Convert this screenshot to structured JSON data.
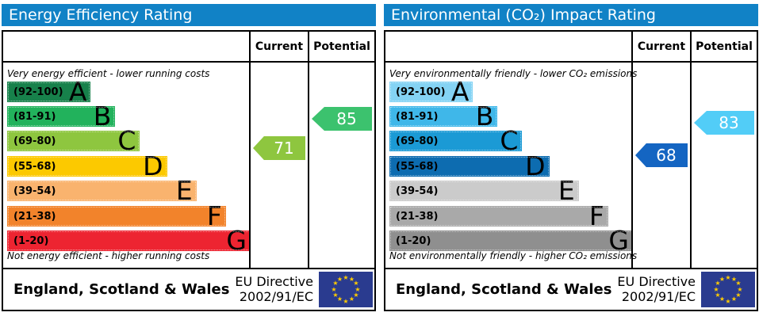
{
  "colors": {
    "header_bar": "#1182c6",
    "border": "#000000",
    "eu_flag_bg": "#2a3b8f",
    "eu_star": "#ffcc00"
  },
  "panels": [
    {
      "title": "Energy Efficiency Rating",
      "columns": {
        "current": "Current",
        "potential": "Potential"
      },
      "top_note": "Very energy efficient - lower running costs",
      "bottom_note": "Not energy efficient - higher running costs",
      "bands": [
        {
          "letter": "A",
          "range": "(92-100)",
          "color": "#17814b"
        },
        {
          "letter": "B",
          "range": "(81-91)",
          "color": "#22b25c"
        },
        {
          "letter": "C",
          "range": "(69-80)",
          "color": "#8ec63f"
        },
        {
          "letter": "D",
          "range": "(55-68)",
          "color": "#fcc900"
        },
        {
          "letter": "E",
          "range": "(39-54)",
          "color": "#f9b36e"
        },
        {
          "letter": "F",
          "range": "(21-38)",
          "color": "#f2832b"
        },
        {
          "letter": "G",
          "range": "(1-20)",
          "color": "#ed2431"
        }
      ],
      "current": {
        "value": "71",
        "band": "C",
        "color": "#8ec63f"
      },
      "potential": {
        "value": "85",
        "band": "B",
        "color": "#3cc26e"
      },
      "footer": {
        "region": "England, Scotland & Wales",
        "directive_line1": "EU Directive",
        "directive_line2": "2002/91/EC"
      }
    },
    {
      "title": "Environmental (CO₂) Impact Rating",
      "columns": {
        "current": "Current",
        "potential": "Potential"
      },
      "top_note": "Very environmentally friendly - lower CO₂ emissions",
      "bottom_note": "Not environmentally friendly - higher CO₂ emissions",
      "bands": [
        {
          "letter": "A",
          "range": "(92-100)",
          "color": "#84d3f4"
        },
        {
          "letter": "B",
          "range": "(81-91)",
          "color": "#3fb7e9"
        },
        {
          "letter": "C",
          "range": "(69-80)",
          "color": "#1b9ad5"
        },
        {
          "letter": "D",
          "range": "(55-68)",
          "color": "#0d6cb0"
        },
        {
          "letter": "E",
          "range": "(39-54)",
          "color": "#cbcbcb"
        },
        {
          "letter": "F",
          "range": "(21-38)",
          "color": "#a9a9a9"
        },
        {
          "letter": "G",
          "range": "(1-20)",
          "color": "#8f8f8f"
        }
      ],
      "current": {
        "value": "68",
        "band": "D",
        "color": "#1465c2"
      },
      "potential": {
        "value": "83",
        "band": "B",
        "color": "#52cdf7"
      },
      "footer": {
        "region": "England, Scotland & Wales",
        "directive_line1": "EU Directive",
        "directive_line2": "2002/91/EC"
      }
    }
  ],
  "chart_data": [
    {
      "type": "bar",
      "title": "Energy Efficiency Rating",
      "categories": [
        "A (92-100)",
        "B (81-91)",
        "C (69-80)",
        "D (55-68)",
        "E (39-54)",
        "F (21-38)",
        "G (1-20)"
      ],
      "scale_range": [
        1,
        100
      ],
      "current": 71,
      "current_band": "C",
      "potential": 85,
      "potential_band": "B",
      "top_annotation": "Very energy efficient - lower running costs",
      "bottom_annotation": "Not energy efficient - higher running costs",
      "footer": "England, Scotland & Wales — EU Directive 2002/91/EC"
    },
    {
      "type": "bar",
      "title": "Environmental (CO₂) Impact Rating",
      "categories": [
        "A (92-100)",
        "B (81-91)",
        "C (69-80)",
        "D (55-68)",
        "E (39-54)",
        "F (21-38)",
        "G (1-20)"
      ],
      "scale_range": [
        1,
        100
      ],
      "current": 68,
      "current_band": "D",
      "potential": 83,
      "potential_band": "B",
      "top_annotation": "Very environmentally friendly - lower CO₂ emissions",
      "bottom_annotation": "Not environmentally friendly - higher CO₂ emissions",
      "footer": "England, Scotland & Wales — EU Directive 2002/91/EC"
    }
  ]
}
